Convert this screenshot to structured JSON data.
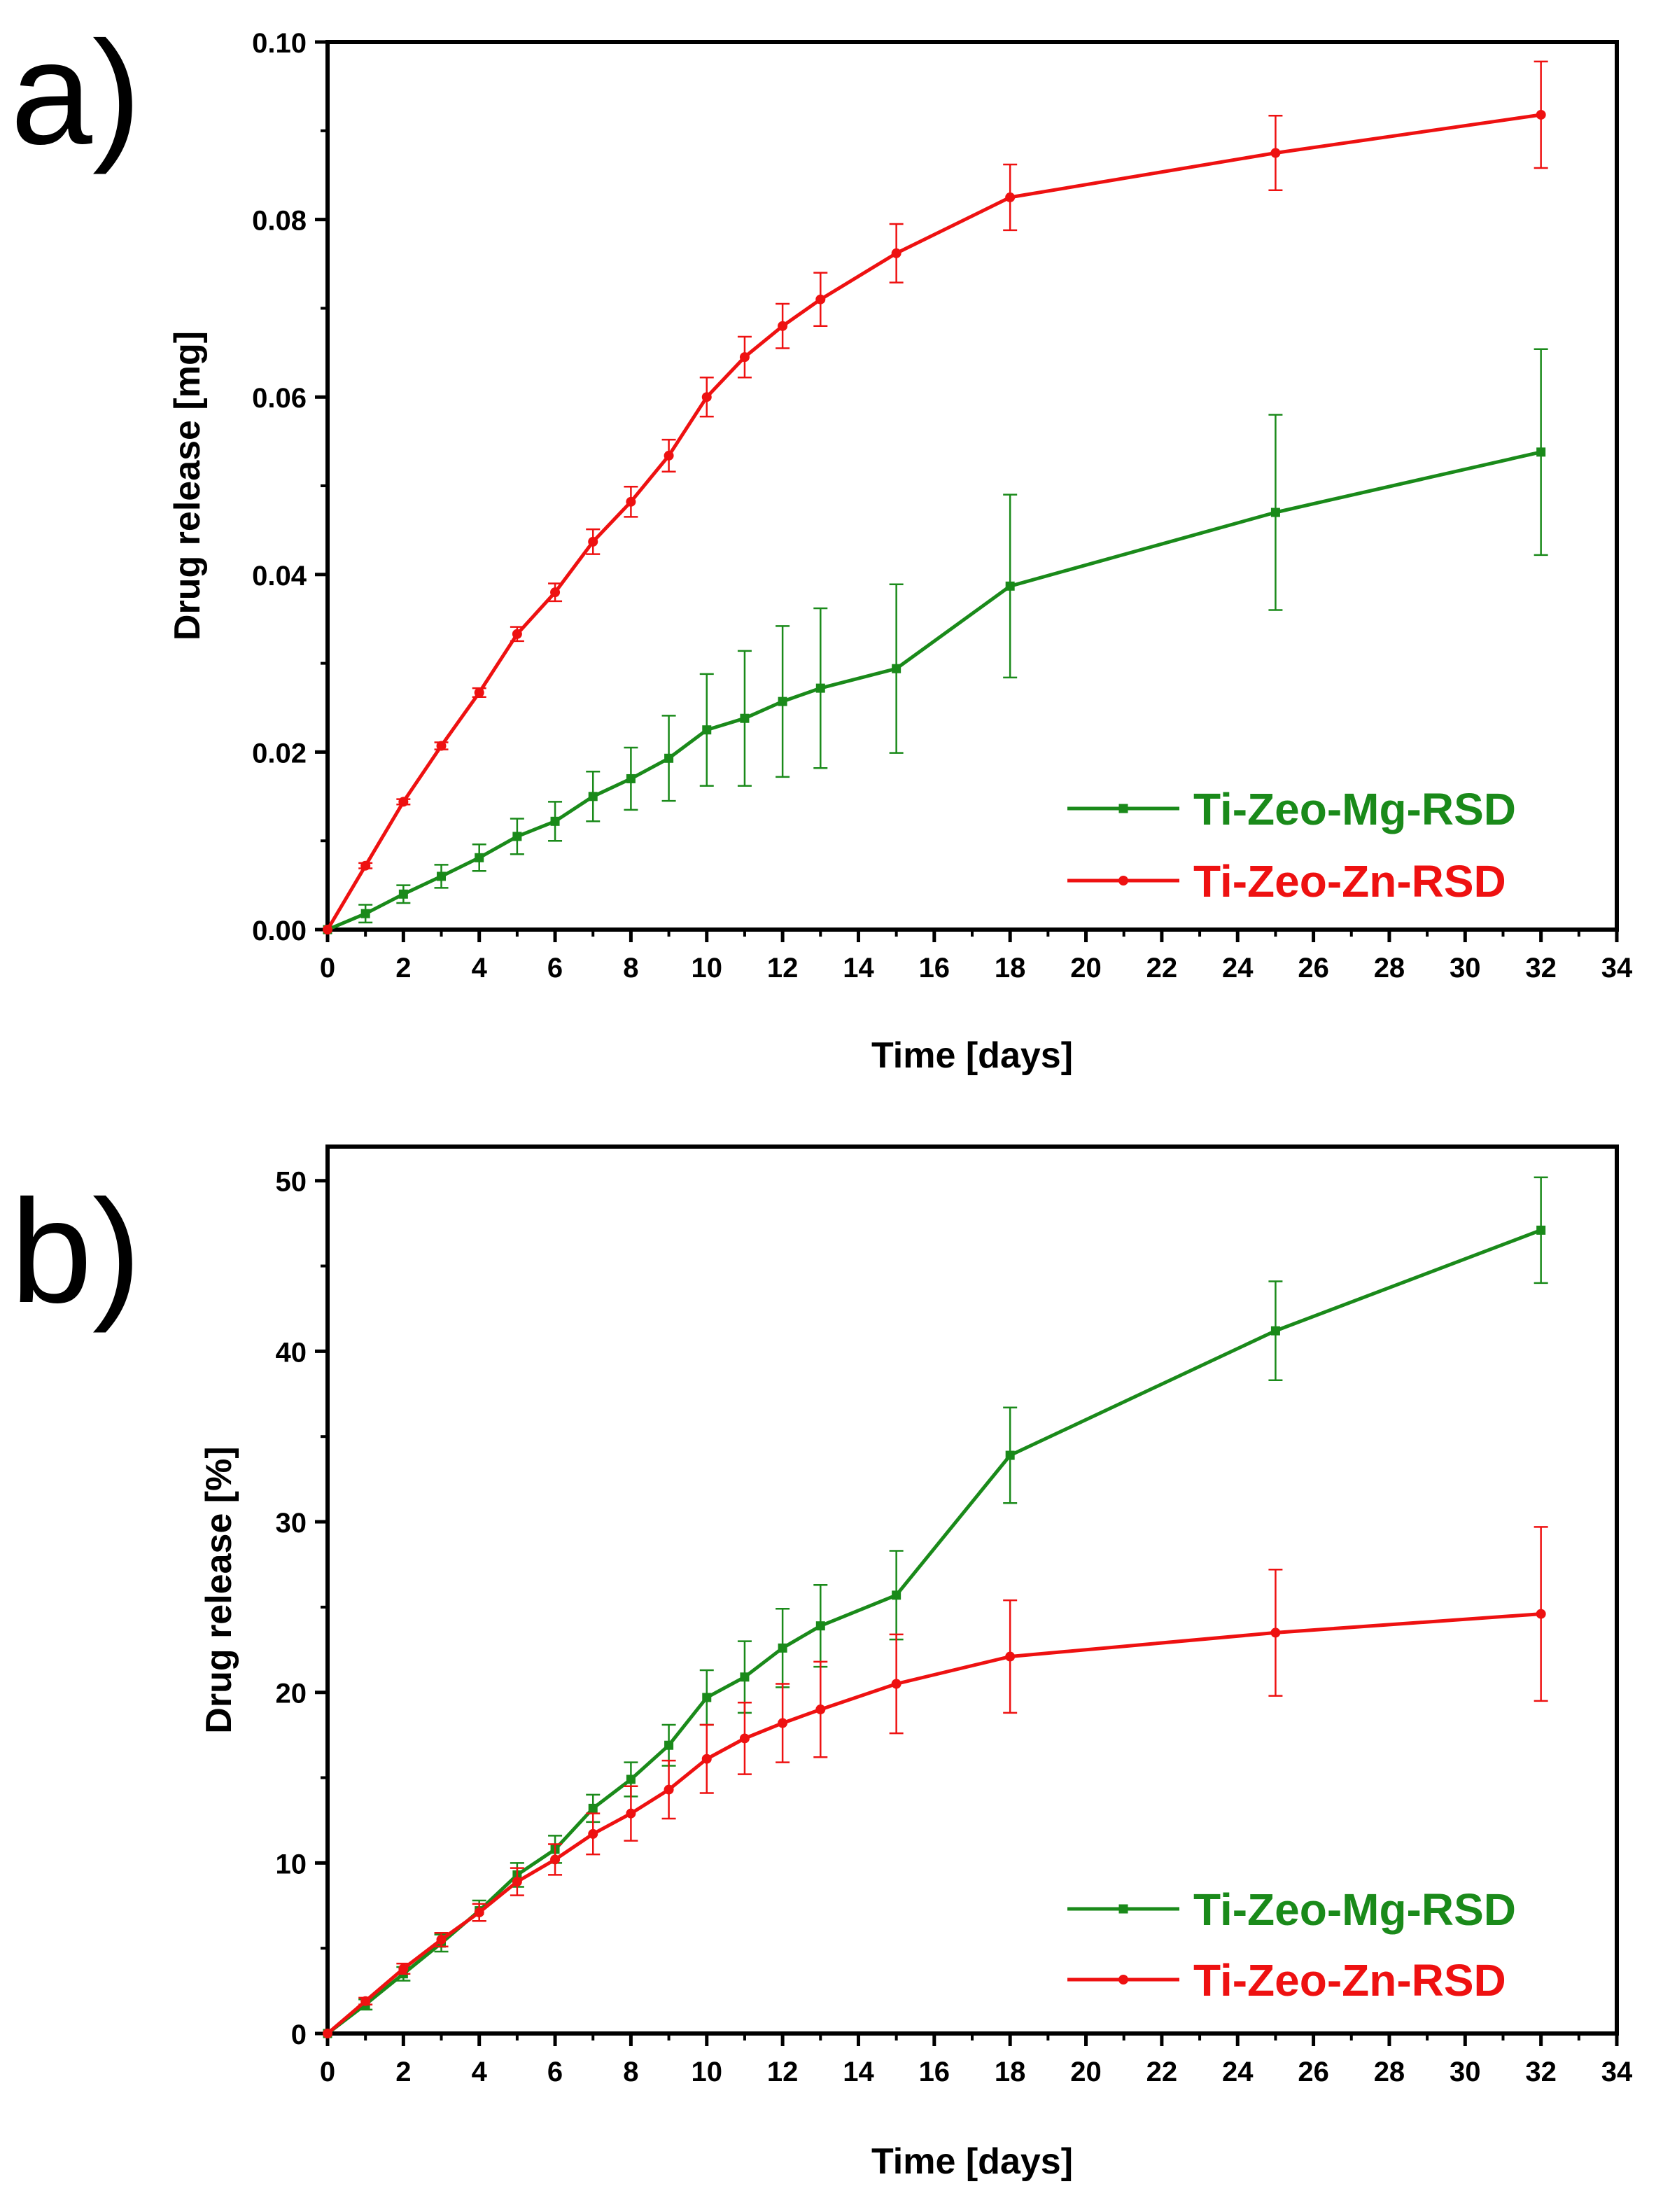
{
  "colors": {
    "mg": "#1a8a1a",
    "zn": "#ee1111",
    "axis": "#000000"
  },
  "chart_data": [
    {
      "panel": "a)",
      "type": "line",
      "xlabel": "Time [days]",
      "ylabel": "Drug release [mg]",
      "xlim": [
        0,
        34
      ],
      "ylim": [
        0,
        0.1
      ],
      "xticks": [
        0,
        2,
        4,
        6,
        8,
        10,
        12,
        14,
        16,
        18,
        20,
        22,
        24,
        26,
        28,
        30,
        32,
        34
      ],
      "xtick_labels": [
        "0",
        "2",
        "4",
        "6",
        "8",
        "10",
        "12",
        "14",
        "16",
        "18",
        "20",
        "22",
        "24",
        "26",
        "28",
        "30",
        "32",
        "34"
      ],
      "yticks": [
        0,
        0.02,
        0.04,
        0.06,
        0.08,
        0.1
      ],
      "ytick_labels": [
        "0.00",
        "0.02",
        "0.04",
        "0.06",
        "0.08",
        "0.10"
      ],
      "grid": false,
      "legend_position": "bottom-right",
      "series": [
        {
          "name": "Ti-Zeo-Mg-RSD",
          "color": "#1a8a1a",
          "marker": "square",
          "x": [
            0,
            1,
            2,
            3,
            4,
            5,
            6,
            7,
            8,
            9,
            10,
            11,
            12,
            13,
            15,
            18,
            25,
            32
          ],
          "y": [
            0,
            0.0018,
            0.004,
            0.006,
            0.0081,
            0.0105,
            0.0122,
            0.015,
            0.017,
            0.0193,
            0.0225,
            0.0238,
            0.0257,
            0.0272,
            0.0294,
            0.0387,
            0.047,
            0.0538
          ],
          "err": [
            0,
            0.001,
            0.001,
            0.0013,
            0.0015,
            0.002,
            0.0022,
            0.0028,
            0.0035,
            0.0048,
            0.0063,
            0.0076,
            0.0085,
            0.009,
            0.0095,
            0.0103,
            0.011,
            0.0116
          ]
        },
        {
          "name": "Ti-Zeo-Zn-RSD",
          "color": "#ee1111",
          "marker": "circle",
          "x": [
            0,
            1,
            2,
            3,
            4,
            5,
            6,
            7,
            8,
            9,
            10,
            11,
            12,
            13,
            15,
            18,
            25,
            32
          ],
          "y": [
            0,
            0.0072,
            0.0144,
            0.0207,
            0.0267,
            0.0333,
            0.038,
            0.0437,
            0.0482,
            0.0534,
            0.06,
            0.0645,
            0.068,
            0.071,
            0.0762,
            0.0825,
            0.0875,
            0.0918
          ],
          "err": [
            0,
            0.0003,
            0.0003,
            0.0004,
            0.0005,
            0.0008,
            0.001,
            0.0014,
            0.0017,
            0.0018,
            0.0022,
            0.0023,
            0.0025,
            0.003,
            0.0033,
            0.0037,
            0.0042,
            0.006
          ]
        }
      ]
    },
    {
      "panel": "b)",
      "type": "line",
      "xlabel": "Time [days]",
      "ylabel": "Drug release [%]",
      "xlim": [
        0,
        34
      ],
      "ylim": [
        0,
        52
      ],
      "xticks": [
        0,
        2,
        4,
        6,
        8,
        10,
        12,
        14,
        16,
        18,
        20,
        22,
        24,
        26,
        28,
        30,
        32,
        34
      ],
      "xtick_labels": [
        "0",
        "2",
        "4",
        "6",
        "8",
        "10",
        "12",
        "14",
        "16",
        "18",
        "20",
        "22",
        "24",
        "26",
        "28",
        "30",
        "32",
        "34"
      ],
      "yticks": [
        0,
        10,
        20,
        30,
        40,
        50
      ],
      "ytick_labels": [
        "0",
        "10",
        "20",
        "30",
        "40",
        "50"
      ],
      "grid": false,
      "legend_position": "bottom-right",
      "series": [
        {
          "name": "Ti-Zeo-Mg-RSD",
          "color": "#1a8a1a",
          "marker": "square",
          "x": [
            0,
            1,
            2,
            3,
            4,
            5,
            6,
            7,
            8,
            9,
            10,
            11,
            12,
            13,
            15,
            18,
            25,
            32
          ],
          "y": [
            0,
            1.7,
            3.5,
            5.3,
            7.2,
            9.3,
            10.8,
            13.2,
            14.9,
            16.9,
            19.7,
            20.9,
            22.6,
            23.9,
            25.7,
            33.9,
            41.2,
            47.1
          ],
          "err": [
            0,
            0.3,
            0.4,
            0.5,
            0.6,
            0.7,
            0.8,
            0.8,
            1.0,
            1.2,
            1.6,
            2.1,
            2.3,
            2.4,
            2.6,
            2.8,
            2.9,
            3.1
          ]
        },
        {
          "name": "Ti-Zeo-Zn-RSD",
          "color": "#ee1111",
          "marker": "circle",
          "x": [
            0,
            1,
            2,
            3,
            4,
            5,
            6,
            7,
            8,
            9,
            10,
            11,
            12,
            13,
            15,
            18,
            25,
            32
          ],
          "y": [
            0,
            1.9,
            3.8,
            5.5,
            7.1,
            8.9,
            10.2,
            11.7,
            12.9,
            14.3,
            16.1,
            17.3,
            18.2,
            19.0,
            20.5,
            22.1,
            23.5,
            24.6
          ],
          "err": [
            0,
            0.2,
            0.3,
            0.4,
            0.5,
            0.8,
            0.9,
            1.2,
            1.6,
            1.7,
            2.0,
            2.1,
            2.3,
            2.8,
            2.9,
            3.3,
            3.7,
            5.1
          ]
        }
      ]
    }
  ]
}
